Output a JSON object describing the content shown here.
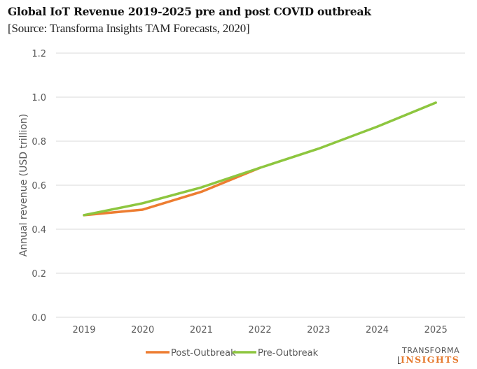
{
  "header": {
    "title": "Global IoT Revenue 2019-2025 pre and post COVID outbreak",
    "subtitle": "[Source: Transforma Insights TAM Forecasts, 2020]"
  },
  "logo": {
    "line1": "TRANSFORMA",
    "line2": "INSIGHTS"
  },
  "chart_data": {
    "type": "line",
    "title": "Global IoT Revenue 2019-2025 pre and post COVID outbreak",
    "subtitle": "[Source: Transforma Insights TAM Forecasts, 2020]",
    "xlabel": "",
    "ylabel": "Annual revenue (USD trillion)",
    "categories": [
      "2019",
      "2020",
      "2021",
      "2022",
      "2023",
      "2024",
      "2025"
    ],
    "ylim": [
      0,
      1.2
    ],
    "yticks": [
      0.0,
      0.2,
      0.4,
      0.6,
      0.8,
      1.0,
      1.2
    ],
    "ytick_labels": [
      "0.0",
      "0.2",
      "0.4",
      "0.6",
      "0.8",
      "1.0",
      "1.2"
    ],
    "grid": true,
    "legend_position": "bottom",
    "series": [
      {
        "name": "Post-Outbreak",
        "color": "#ed7d31",
        "values": [
          0.464,
          0.489,
          0.57,
          0.679,
          null,
          null,
          null
        ]
      },
      {
        "name": "Pre-Outbreak",
        "color": "#8dc63f",
        "values": [
          0.464,
          0.518,
          0.59,
          0.679,
          0.766,
          0.866,
          0.975
        ]
      }
    ]
  }
}
